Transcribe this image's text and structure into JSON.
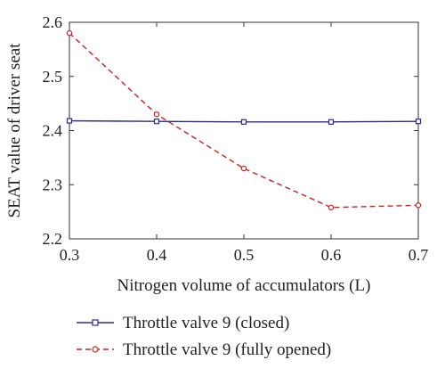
{
  "chart_data": {
    "type": "line",
    "title": "",
    "xlabel": "Nitrogen volume of accumulators (L)",
    "ylabel": "SEAT value of driver seat",
    "xlim": [
      0.3,
      0.7
    ],
    "ylim": [
      2.2,
      2.6
    ],
    "x_ticks": [
      "0.3",
      "0.4",
      "0.5",
      "0.6",
      "0.7"
    ],
    "y_ticks": [
      "2.2",
      "2.3",
      "2.4",
      "2.5",
      "2.6"
    ],
    "grid": false,
    "legend_position": "bottom",
    "x": [
      0.3,
      0.4,
      0.5,
      0.6,
      0.7
    ],
    "series": [
      {
        "name": "Throttle valve 9 (closed)",
        "values": [
          2.418,
          2.417,
          2.416,
          2.416,
          2.417
        ],
        "color": "#2b2b8f",
        "line_style": "solid",
        "marker": "square"
      },
      {
        "name": "Throttle valve 9 (fully opened)",
        "values": [
          2.58,
          2.43,
          2.33,
          2.258,
          2.262
        ],
        "color": "#cc1f1f",
        "line_style": "dashed",
        "marker": "circle"
      }
    ]
  }
}
